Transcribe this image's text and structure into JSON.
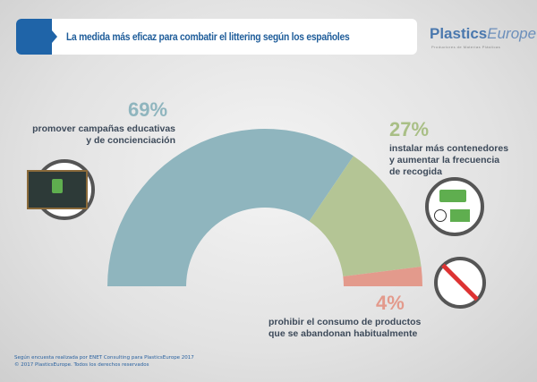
{
  "header": {
    "title": "La medida más eficaz para combatir el littering según los españoles"
  },
  "logo": {
    "bold": "Plastics",
    "light": "Europe",
    "tagline": "Productores de Materias Plásticas"
  },
  "chart_data": {
    "type": "pie",
    "variant": "half-donut",
    "title": "La medida más eficaz para combatir el littering según los españoles",
    "unit": "%",
    "slices": [
      {
        "label": "promover campañas educativas y de concienciación",
        "value": 69,
        "display": "69%",
        "color": "#8fb5be"
      },
      {
        "label": "instalar más contenedores y aumentar la frecuencia de recogida",
        "value": 27,
        "display": "27%",
        "color": "#b4c595"
      },
      {
        "label": "prohibir el consumo de productos que se abandonan habitualmente",
        "value": 4,
        "display": "4%",
        "color": "#e39a8c"
      }
    ]
  },
  "labels": {
    "s0": [
      "promover campañas educativas",
      "y de concienciación"
    ],
    "s1": [
      "instalar más contenedores",
      "y aumentar la frecuencia",
      "de recogida"
    ],
    "s2": [
      "prohibir el consumo de productos",
      "que se abandonan habitualmente"
    ]
  },
  "footer": {
    "line1": "Según encuesta realizada por ENET Consulting para PlasticsEurope 2017",
    "line2": "© 2017 PlasticsEurope. Todos los derechos reservados"
  }
}
